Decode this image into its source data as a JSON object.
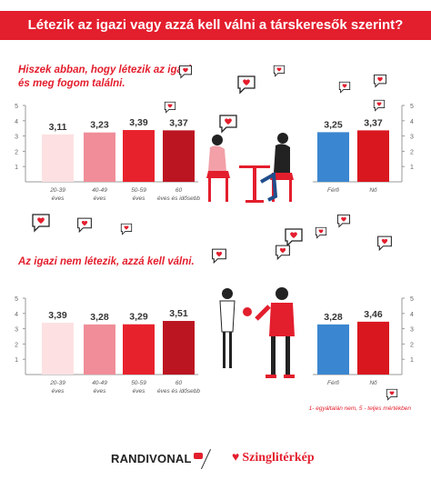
{
  "header": {
    "title": "Létezik az igazi vagy azzá kell válni a társkeresők szerint?"
  },
  "footnote": "1- egyáltalán nem, 5 - teljes mértékben",
  "logos": {
    "left": "RANDIVONAL",
    "right": "Szinglitérkép"
  },
  "colors": {
    "banner": "#e31e2d",
    "age1": "#fde1e2",
    "age2": "#f08d98",
    "age3": "#e8222d",
    "age4": "#bc1522",
    "male": "#3b86d0",
    "female": "#d9171f"
  },
  "chart_data": [
    {
      "type": "bar",
      "title": "Hiszek abban, hogy létezik az igazi és meg fogom találni.",
      "ylim": [
        0,
        5
      ],
      "yticks": [
        "0",
        "1",
        "2",
        "3",
        "4",
        "5"
      ],
      "groups": [
        {
          "name": "age",
          "categories": [
            "20-39 éves",
            "40-49 éves",
            "50-59 éves",
            "60 éves és idősebb"
          ],
          "values": [
            3.11,
            3.23,
            3.39,
            3.37
          ],
          "labels": [
            "3,11",
            "3,23",
            "3,39",
            "3,37"
          ]
        },
        {
          "name": "gender",
          "categories": [
            "Férfi",
            "Nő"
          ],
          "values": [
            3.25,
            3.37
          ],
          "labels": [
            "3,25",
            "3,37"
          ]
        }
      ]
    },
    {
      "type": "bar",
      "title": "Az igazi nem létezik, azzá kell válni.",
      "ylim": [
        0,
        5
      ],
      "yticks": [
        "0",
        "1",
        "2",
        "3",
        "4",
        "5"
      ],
      "groups": [
        {
          "name": "age",
          "categories": [
            "20-39 éves",
            "40-49 éves",
            "50-59 éves",
            "60 éves és idősebb"
          ],
          "values": [
            3.39,
            3.28,
            3.29,
            3.51
          ],
          "labels": [
            "3,39",
            "3,28",
            "3,29",
            "3,51"
          ]
        },
        {
          "name": "gender",
          "categories": [
            "Férfi",
            "Nő"
          ],
          "values": [
            3.28,
            3.46
          ],
          "labels": [
            "3,28",
            "3,46"
          ]
        }
      ]
    }
  ]
}
